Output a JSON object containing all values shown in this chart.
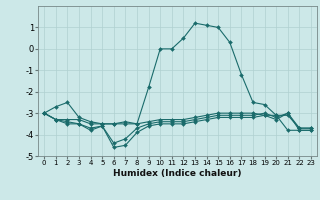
{
  "xlabel": "Humidex (Indice chaleur)",
  "xlim": [
    -0.5,
    23.5
  ],
  "ylim": [
    -5,
    2
  ],
  "yticks": [
    -5,
    -4,
    -3,
    -2,
    -1,
    0,
    1
  ],
  "xticks": [
    0,
    1,
    2,
    3,
    4,
    5,
    6,
    7,
    8,
    9,
    10,
    11,
    12,
    13,
    14,
    15,
    16,
    17,
    18,
    19,
    20,
    21,
    22,
    23
  ],
  "bg_color": "#cce8e8",
  "grid_color": "#b0d0d0",
  "line_color": "#1a6b6b",
  "line1_x": [
    0,
    1,
    2,
    3,
    4,
    5,
    6,
    7,
    8,
    9,
    10,
    11,
    12,
    13,
    14,
    15,
    16,
    17,
    18,
    19,
    20,
    21,
    22,
    23
  ],
  "line1_y": [
    -3.0,
    -2.7,
    -2.5,
    -3.2,
    -3.4,
    -3.5,
    -3.5,
    -3.4,
    -3.5,
    -1.8,
    0.0,
    0.0,
    0.5,
    1.2,
    1.1,
    1.0,
    0.3,
    -1.2,
    -2.5,
    -2.6,
    -3.1,
    -3.8,
    -3.8,
    -3.8
  ],
  "line2_x": [
    0,
    1,
    2,
    3,
    4,
    5,
    6,
    7,
    8,
    9,
    10,
    11,
    12,
    13,
    14,
    15,
    16,
    17,
    18,
    19,
    20,
    21,
    22,
    23
  ],
  "line2_y": [
    -3.0,
    -3.3,
    -3.3,
    -3.3,
    -3.5,
    -3.5,
    -3.5,
    -3.5,
    -3.5,
    -3.4,
    -3.3,
    -3.3,
    -3.3,
    -3.2,
    -3.1,
    -3.0,
    -3.0,
    -3.0,
    -3.0,
    -3.1,
    -3.1,
    -3.1,
    -3.7,
    -3.7
  ],
  "line3_x": [
    0,
    1,
    2,
    3,
    4,
    5,
    6,
    7,
    8,
    9,
    10,
    11,
    12,
    13,
    14,
    15,
    16,
    17,
    18,
    19,
    20,
    21,
    22,
    23
  ],
  "line3_y": [
    -3.0,
    -3.3,
    -3.4,
    -3.5,
    -3.7,
    -3.6,
    -4.4,
    -4.2,
    -3.7,
    -3.5,
    -3.4,
    -3.4,
    -3.4,
    -3.3,
    -3.2,
    -3.1,
    -3.1,
    -3.1,
    -3.1,
    -3.0,
    -3.2,
    -3.0,
    -3.7,
    -3.7
  ],
  "line4_x": [
    0,
    1,
    2,
    3,
    4,
    5,
    6,
    7,
    8,
    9,
    10,
    11,
    12,
    13,
    14,
    15,
    16,
    17,
    18,
    19,
    20,
    21,
    22,
    23
  ],
  "line4_y": [
    -3.0,
    -3.3,
    -3.5,
    -3.5,
    -3.8,
    -3.6,
    -4.6,
    -4.5,
    -3.9,
    -3.6,
    -3.5,
    -3.5,
    -3.5,
    -3.4,
    -3.3,
    -3.2,
    -3.2,
    -3.2,
    -3.2,
    -3.1,
    -3.3,
    -3.0,
    -3.8,
    -3.8
  ]
}
